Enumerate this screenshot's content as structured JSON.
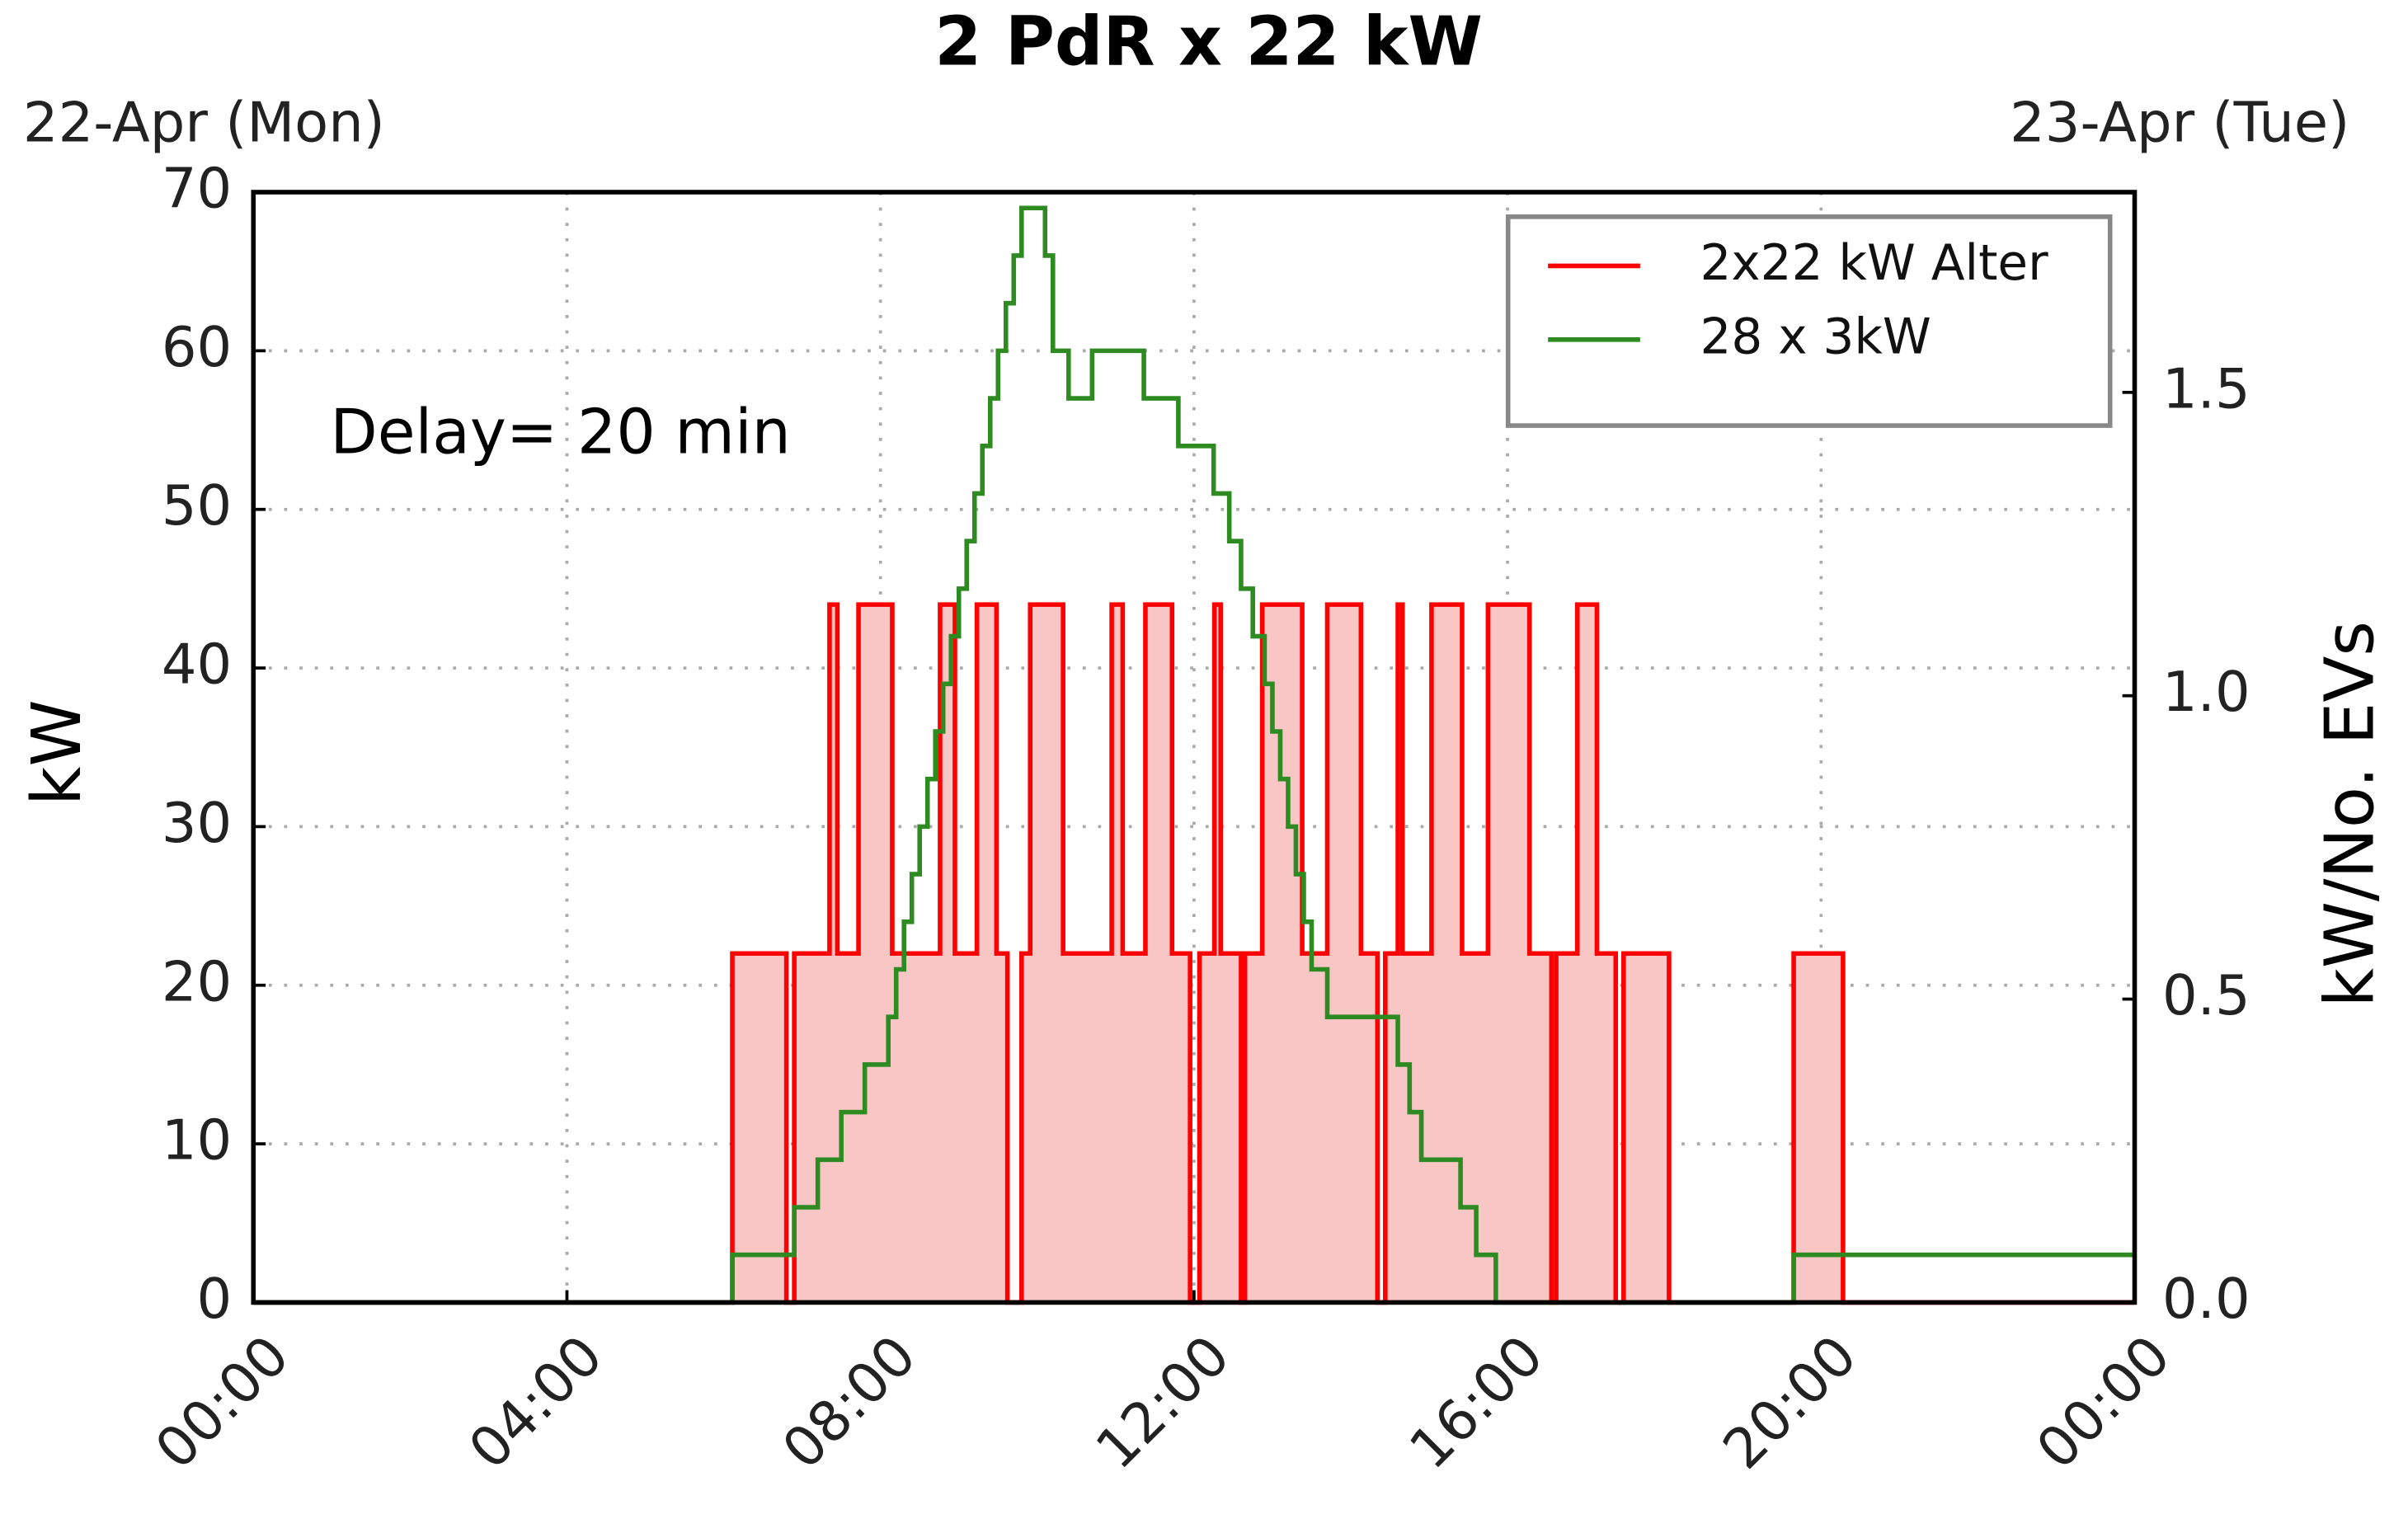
{
  "chart_data": {
    "type": "line",
    "title": "2 PdR x 22 kW",
    "annotations": [
      "22-Apr (Mon)",
      "23-Apr (Tue)",
      "Delay= 20 min"
    ],
    "ylabel": "kW",
    "y2label": "kW/No. EVs",
    "xlim": [
      0,
      24
    ],
    "xticks": [
      {
        "value": 0,
        "label": "00:00"
      },
      {
        "value": 4,
        "label": "04:00"
      },
      {
        "value": 8,
        "label": "08:00"
      },
      {
        "value": 12,
        "label": "12:00"
      },
      {
        "value": 16,
        "label": "16:00"
      },
      {
        "value": 20,
        "label": "20:00"
      },
      {
        "value": 24,
        "label": "00:00"
      }
    ],
    "ylim": [
      0,
      70
    ],
    "yticks": [
      0,
      10,
      20,
      30,
      40,
      50,
      60,
      70
    ],
    "y2lim": [
      0,
      1.83
    ],
    "y2ticks": [
      {
        "value": 0,
        "label": "0.0"
      },
      {
        "value": 0.5,
        "label": "0.5"
      },
      {
        "value": 1,
        "label": "1.0"
      },
      {
        "value": 1.5,
        "label": "1.5"
      }
    ],
    "grid": true,
    "legend": "upper right",
    "drawstyle": "steps-post",
    "series": [
      {
        "name": "2x22 kW Alter",
        "color": "#ff0000",
        "fill_color": "#f9c6c6",
        "x": [
          0,
          6.11,
          6.8,
          6.9,
          7.35,
          7.45,
          7.72,
          8.15,
          8.76,
          8.95,
          9.23,
          9.48,
          9.62,
          9.8,
          9.91,
          10.33,
          10.95,
          11.09,
          11.38,
          11.72,
          11.95,
          12.07,
          12.26,
          12.34,
          12.6,
          12.65,
          12.87,
          13.38,
          13.7,
          14.13,
          14.34,
          14.44,
          14.6,
          14.66,
          15.03,
          15.42,
          15.75,
          16.28,
          16.56,
          16.62,
          16.89,
          17.14,
          17.38,
          17.48,
          18.06,
          19.65,
          20.28
        ],
        "values": [
          0,
          22,
          0,
          22,
          44,
          22,
          44,
          22,
          44,
          22,
          44,
          22,
          0,
          22,
          44,
          22,
          44,
          22,
          44,
          22,
          0,
          22,
          44,
          22,
          0,
          22,
          44,
          22,
          44,
          22,
          0,
          22,
          44,
          22,
          44,
          22,
          44,
          22,
          0,
          22,
          44,
          22,
          0,
          22,
          0,
          22,
          0
        ]
      },
      {
        "name": "28 x 3kW",
        "color": "#2e8b22",
        "x": [
          0,
          6.11,
          6.9,
          7.2,
          7.5,
          7.8,
          8.1,
          8.2,
          8.3,
          8.4,
          8.5,
          8.6,
          8.7,
          8.8,
          8.9,
          9.0,
          9.1,
          9.2,
          9.3,
          9.4,
          9.5,
          9.6,
          9.7,
          9.8,
          10.1,
          10.2,
          10.4,
          10.7,
          11.36,
          11.8,
          12.25,
          12.45,
          12.6,
          12.75,
          12.9,
          13.0,
          13.1,
          13.2,
          13.3,
          13.4,
          13.5,
          13.7,
          14.6,
          14.75,
          14.9,
          15.4,
          15.6,
          15.85,
          19.65
        ],
        "values": [
          0,
          3,
          6,
          9,
          12,
          15,
          18,
          21,
          24,
          27,
          30,
          33,
          36,
          39,
          42,
          45,
          48,
          51,
          54,
          57,
          60,
          63,
          66,
          69,
          66,
          60,
          57,
          60,
          57,
          54,
          51,
          48,
          45,
          42,
          39,
          36,
          33,
          30,
          27,
          24,
          21,
          18,
          15,
          12,
          9,
          6,
          3,
          0,
          3
        ]
      }
    ]
  }
}
